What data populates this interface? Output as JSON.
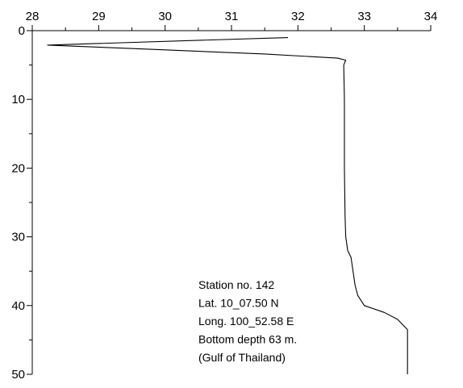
{
  "chart_data": {
    "type": "line",
    "title": "",
    "xlabel": "",
    "ylabel": "",
    "xlim": [
      28,
      34
    ],
    "ylim": [
      50,
      0
    ],
    "x_axis_position": "top",
    "y_axis_inverted": true,
    "grid": false,
    "x_ticks": [
      28,
      29,
      30,
      31,
      32,
      33,
      34
    ],
    "x_tick_labels": [
      "28",
      "29",
      "30",
      "31",
      "32",
      "33",
      "34"
    ],
    "y_ticks": [
      0,
      10,
      20,
      30,
      40,
      50
    ],
    "y_tick_labels": [
      "0",
      "10",
      "20",
      "30",
      "40",
      "50"
    ],
    "series": [
      {
        "x": [
          31.85,
          28.23,
          30.0,
          31.5,
          32.6,
          32.72,
          32.69,
          32.7,
          32.7,
          32.71,
          32.72,
          32.75,
          32.8,
          32.83,
          32.86,
          32.9,
          33.0,
          33.3,
          33.5,
          33.65,
          33.65
        ],
        "y": [
          1.0,
          2.1,
          2.8,
          3.4,
          4.0,
          4.3,
          5.0,
          10.0,
          20.0,
          27.0,
          30.0,
          32.0,
          33.0,
          35.0,
          37.0,
          38.5,
          40.0,
          41.0,
          42.0,
          43.5,
          50.0
        ]
      }
    ],
    "annotations": [
      "Station no. 142",
      "Lat. 10_07.50 N",
      "Long. 100_52.58 E",
      "Bottom depth 63 m.",
      "(Gulf of Thailand)"
    ]
  }
}
